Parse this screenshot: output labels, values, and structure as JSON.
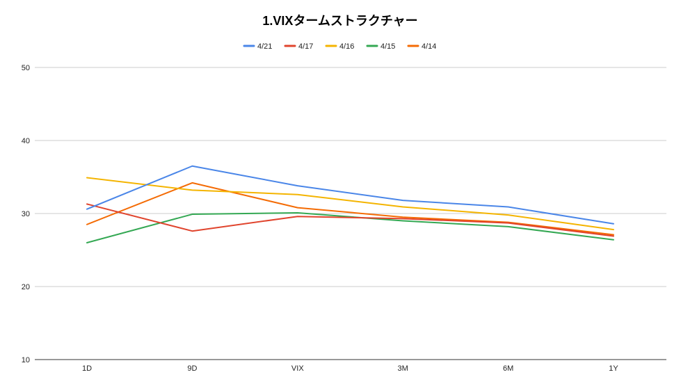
{
  "chart_data": {
    "type": "line",
    "title": "1.VIXタームストラクチャー",
    "xlabel": "",
    "ylabel": "",
    "categories": [
      "1D",
      "9D",
      "VIX",
      "3M",
      "6M",
      "1Y"
    ],
    "ylim": [
      10,
      50
    ],
    "yticks": [
      10,
      20,
      30,
      40,
      50
    ],
    "grid": true,
    "legend_position": "top",
    "series": [
      {
        "name": "4/21",
        "color": "#4a86e8",
        "values": [
          30.6,
          36.5,
          33.8,
          31.8,
          30.9,
          28.6
        ]
      },
      {
        "name": "4/17",
        "color": "#e0442d",
        "values": [
          31.3,
          27.6,
          29.6,
          29.3,
          28.7,
          26.9
        ]
      },
      {
        "name": "4/16",
        "color": "#f4b400",
        "values": [
          34.9,
          33.2,
          32.6,
          30.9,
          29.8,
          27.8
        ]
      },
      {
        "name": "4/15",
        "color": "#34a853",
        "values": [
          26.0,
          29.9,
          30.1,
          29.0,
          28.2,
          26.4
        ]
      },
      {
        "name": "4/14",
        "color": "#f46b04",
        "values": [
          28.5,
          34.2,
          30.8,
          29.5,
          28.8,
          27.1
        ]
      }
    ]
  }
}
